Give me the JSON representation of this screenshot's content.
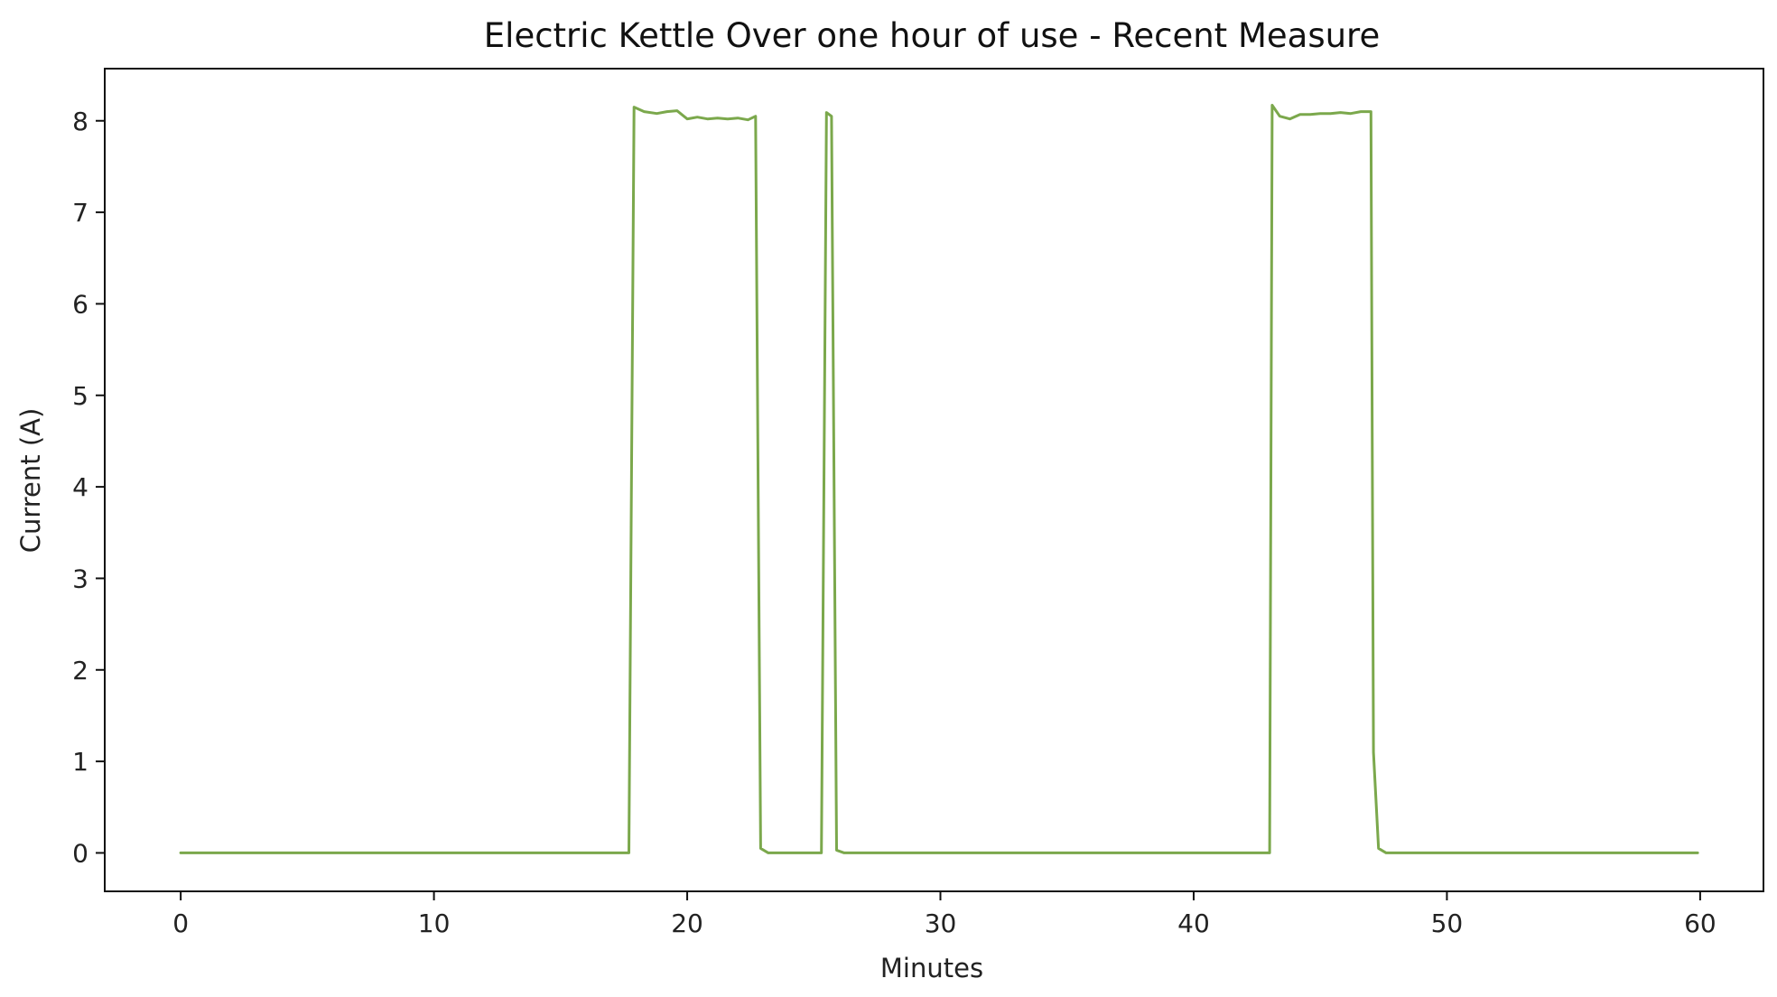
{
  "chart_data": {
    "type": "line",
    "title": "Electric Kettle Over one hour of use - Recent Measure",
    "xlabel": "Minutes",
    "ylabel": "Current (A)",
    "xlim": [
      -3,
      62.5
    ],
    "ylim": [
      -0.42,
      8.57
    ],
    "xticks": [
      0,
      10,
      20,
      30,
      40,
      50,
      60
    ],
    "yticks": [
      0,
      1,
      2,
      3,
      4,
      5,
      6,
      7,
      8
    ],
    "xtick_labels": [
      "0",
      "10",
      "20",
      "30",
      "40",
      "50",
      "60"
    ],
    "ytick_labels": [
      "0",
      "1",
      "2",
      "3",
      "4",
      "5",
      "6",
      "7",
      "8"
    ],
    "grid": false,
    "legend": "none",
    "series": [
      {
        "color": "#7ba84c",
        "x": [
          0,
          17.7,
          17.9,
          18.3,
          18.8,
          19.2,
          19.6,
          20.0,
          20.4,
          20.8,
          21.2,
          21.6,
          22.0,
          22.4,
          22.7,
          22.9,
          23.2,
          25.3,
          25.5,
          25.7,
          25.9,
          26.2,
          43.0,
          43.1,
          43.4,
          43.8,
          44.2,
          44.6,
          45.0,
          45.4,
          45.8,
          46.2,
          46.6,
          47.0,
          47.1,
          47.3,
          47.6,
          59.9
        ],
        "y": [
          0,
          0,
          8.15,
          8.1,
          8.08,
          8.1,
          8.11,
          8.02,
          8.04,
          8.02,
          8.03,
          8.02,
          8.03,
          8.01,
          8.05,
          0.05,
          0,
          0,
          8.09,
          8.05,
          0.03,
          0,
          0,
          8.17,
          8.05,
          8.02,
          8.07,
          8.07,
          8.08,
          8.08,
          8.09,
          8.08,
          8.1,
          8.1,
          1.1,
          0.05,
          0,
          0
        ]
      }
    ]
  }
}
